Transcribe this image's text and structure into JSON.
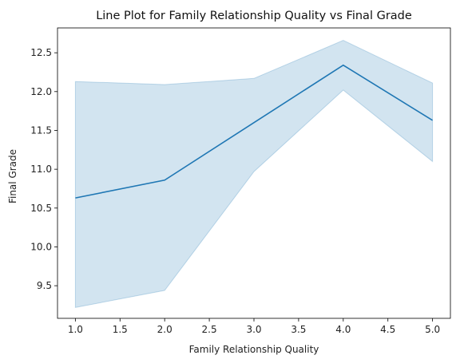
{
  "chart_data": {
    "type": "line",
    "title": "Line Plot for Family Relationship Quality vs Final Grade",
    "xlabel": "Family Relationship Quality",
    "ylabel": "Final Grade",
    "x": [
      1.0,
      2.0,
      3.0,
      4.0,
      5.0
    ],
    "series": [
      {
        "values": [
          10.63,
          10.86,
          11.6,
          12.34,
          11.63
        ],
        "ci_lower": [
          9.22,
          9.44,
          10.97,
          12.02,
          11.1
        ],
        "ci_upper": [
          12.13,
          12.09,
          12.17,
          12.66,
          12.11
        ],
        "color": "#1f77b4",
        "band_color": "#1f77b4"
      }
    ],
    "xlim": [
      0.8,
      5.2
    ],
    "ylim": [
      9.08,
      12.82
    ],
    "xticks": [
      1.0,
      1.5,
      2.0,
      2.5,
      3.0,
      3.5,
      4.0,
      4.5,
      5.0
    ],
    "xtick_labels": [
      "1.0",
      "1.5",
      "2.0",
      "2.5",
      "3.0",
      "3.5",
      "4.0",
      "4.5",
      "5.0"
    ],
    "yticks": [
      9.5,
      10.0,
      10.5,
      11.0,
      11.5,
      12.0,
      12.5
    ],
    "ytick_labels": [
      "9.5",
      "10.0",
      "10.5",
      "11.0",
      "11.5",
      "12.0",
      "12.5"
    ],
    "grid": false,
    "legend": "none"
  }
}
